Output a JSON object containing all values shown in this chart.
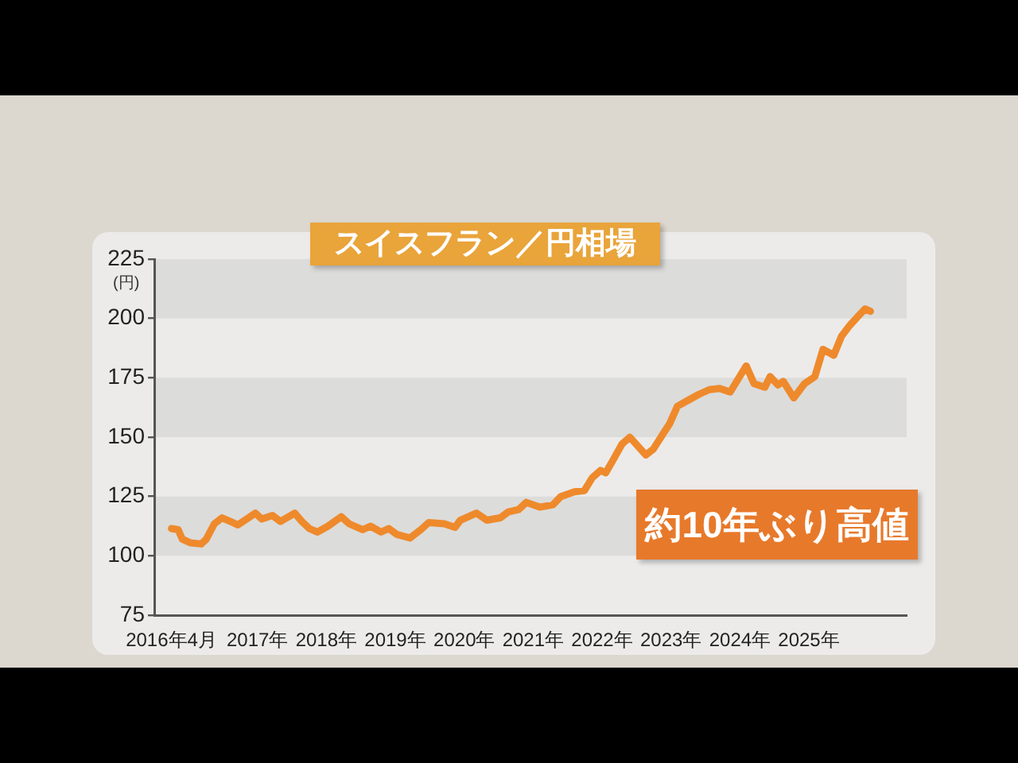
{
  "chart_data": {
    "type": "line",
    "title": "スイスフラン／円相場",
    "ylabel": "(円)",
    "annotations": [
      "約10年ぶり高値"
    ],
    "x": [
      "2016-04-01",
      "2016-05-07",
      "2016-05-29",
      "2016-07-10",
      "2016-09-06",
      "2016-10-03",
      "2016-11-15",
      "2016-12-26",
      "2017-02-08",
      "2017-03-19",
      "2017-05-15",
      "2017-06-20",
      "2017-07-24",
      "2017-09-19",
      "2017-10-31",
      "2018-01-15",
      "2018-02-21",
      "2018-04-02",
      "2018-05-14",
      "2018-07-10",
      "2018-09-18",
      "2018-10-30",
      "2018-11-27",
      "2019-01-09",
      "2019-02-20",
      "2019-04-16",
      "2019-05-27",
      "2019-07-09",
      "2019-09-17",
      "2019-11-13",
      "2019-12-25",
      "2020-03-17",
      "2020-05-13",
      "2020-06-10",
      "2020-09-03",
      "2020-10-29",
      "2021-01-08",
      "2021-02-19",
      "2021-04-15",
      "2021-05-26",
      "2021-08-05",
      "2021-10-14",
      "2021-11-25",
      "2022-02-05",
      "2022-03-30",
      "2022-05-11",
      "2022-06-23",
      "2022-07-21",
      "2022-09-02",
      "2022-10-14",
      "2022-11-25",
      "2023-02-18",
      "2023-03-30",
      "2023-05-25",
      "2023-06-23",
      "2023-08-04",
      "2023-09-29",
      "2023-11-25",
      "2024-01-20",
      "2024-03-15",
      "2024-05-10",
      "2024-08-03",
      "2024-09-14",
      "2024-11-10",
      "2024-12-08",
      "2025-01-19",
      "2025-02-16",
      "2025-04-12",
      "2025-06-08",
      "2025-08-02",
      "2025-09-14",
      "2025-11-10",
      "2025-12-21",
      "2026-02-02",
      "2026-03-14",
      "2026-04-25",
      "2026-05-23"
    ],
    "series": [
      {
        "color": "#ee8a2c",
        "values": [
          111.5,
          111,
          107,
          105.5,
          105,
          107,
          113.5,
          116,
          114.5,
          113,
          116,
          118,
          115.5,
          117,
          114.5,
          118,
          114.5,
          111.5,
          110,
          112.5,
          116.5,
          113.5,
          112.5,
          111,
          112.5,
          110,
          111.5,
          109,
          107.5,
          111,
          114,
          113.5,
          112,
          115,
          118,
          115,
          116,
          118.5,
          119.5,
          122.5,
          120.5,
          121.5,
          125,
          127,
          127.5,
          133,
          136,
          135,
          141,
          147,
          150,
          142.5,
          145,
          152,
          155.5,
          163,
          165.5,
          168,
          170,
          170.5,
          169,
          180,
          172.5,
          171,
          175.5,
          172,
          173.5,
          166.5,
          172.5,
          175.5,
          187,
          184.5,
          192.5,
          197,
          200.5,
          204,
          203
        ]
      }
    ],
    "xlim": [
      "2016-01-01",
      "2026-12-01"
    ],
    "xticks": [
      {
        "value": "2016-04-01",
        "label": "2016年4月"
      },
      {
        "value": "2017-07-01",
        "label": "2017年"
      },
      {
        "value": "2018-07-01",
        "label": "2018年"
      },
      {
        "value": "2019-07-01",
        "label": "2019年"
      },
      {
        "value": "2020-07-01",
        "label": "2020年"
      },
      {
        "value": "2021-07-01",
        "label": "2021年"
      },
      {
        "value": "2022-07-01",
        "label": "2022年"
      },
      {
        "value": "2023-07-01",
        "label": "2023年"
      },
      {
        "value": "2024-07-01",
        "label": "2024年"
      },
      {
        "value": "2025-07-01",
        "label": "2025年"
      }
    ],
    "ylim": [
      75,
      225
    ],
    "yticks": [
      75,
      100,
      125,
      150,
      175,
      200,
      225
    ],
    "bands": [
      {
        "axis": "y",
        "from": 100,
        "to": 125,
        "color": "#dcdcdb"
      },
      {
        "axis": "y",
        "from": 150,
        "to": 175,
        "color": "#dcdcdb"
      },
      {
        "axis": "y",
        "from": 200,
        "to": 225,
        "color": "#dcdcdb"
      }
    ],
    "grid": false,
    "legend": false,
    "marker": "none",
    "line_style": "solid"
  }
}
